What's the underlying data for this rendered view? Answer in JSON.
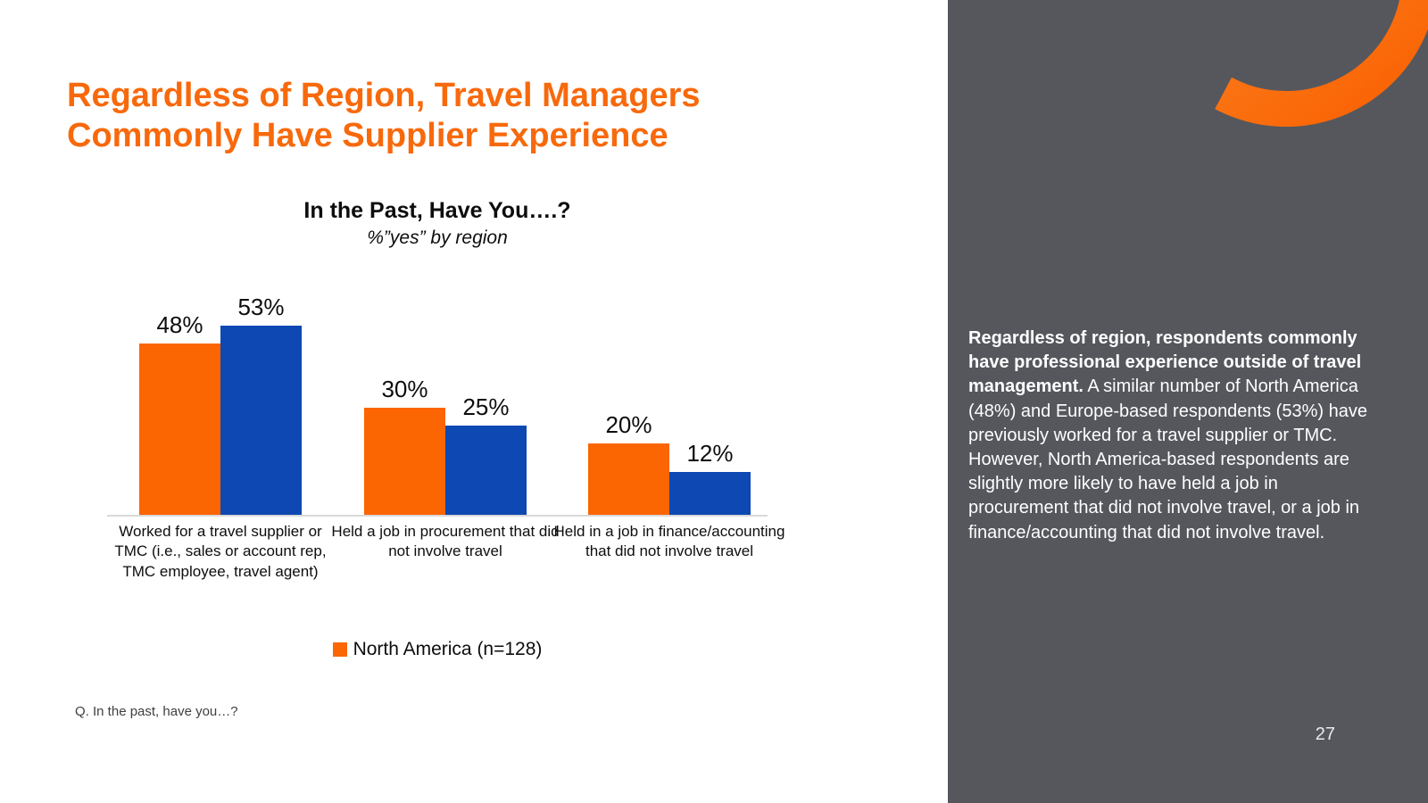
{
  "slide": {
    "title": "Regardless of Region, Travel Managers Commonly Have Supplier Experience",
    "footnote": "Q. In the past, have you…?",
    "page_number": "27"
  },
  "chart_data": {
    "type": "bar",
    "title": "In the Past, Have You….?",
    "subtitle": "%”yes” by region",
    "categories": [
      "Worked for a travel supplier or TMC (i.e., sales or account rep, TMC employee, travel agent)",
      "Held a job in procurement that did not involve travel",
      "Held in a job in finance/accounting that did not involve travel"
    ],
    "series": [
      {
        "name": "North America (n=128)",
        "color": "#FB6502",
        "values": [
          48,
          30,
          20
        ]
      },
      {
        "name": "",
        "color": "#0E48B2",
        "values": [
          53,
          25,
          12
        ]
      }
    ],
    "value_suffix": "%",
    "value_labels": true,
    "ylim": [
      0,
      60
    ],
    "grid": false,
    "y_axis_visible": false,
    "legend_position": "bottom",
    "legend": [
      {
        "label": "North America (n=128)",
        "color": "#FB6502"
      }
    ]
  },
  "sidebar": {
    "commentary_bold": "Regardless of region, respondents commonly have professional experience outside of travel management.",
    "commentary_rest": " A similar number of North America (48%) and Europe-based respondents (53%) have previously worked for a travel supplier or TMC. However, North America-based respondents are slightly more likely to have held a job in procurement that did not involve travel, or a job in finance/accounting that did not involve travel."
  }
}
